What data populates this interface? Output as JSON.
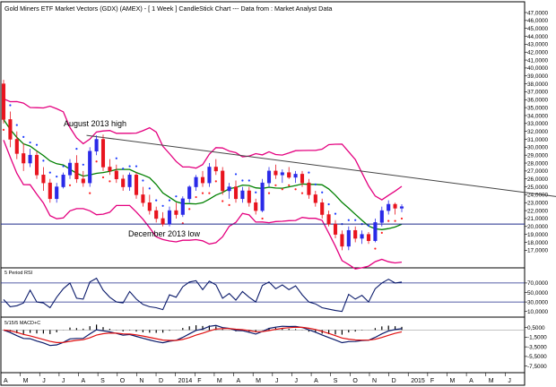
{
  "chart_data": {
    "type": "candlestick",
    "title": "Gold Miners ETF Market Vectors (GDX) (AMEX) - [ 1 Week ] CandleStick Chart --- Data from : Market Analyst Data",
    "annotations": [
      "August 2013 high",
      "December 2013 low"
    ],
    "price_ylim": [
      15.0,
      47.0
    ],
    "price_ticks": [
      "47,0000",
      "46,0000",
      "45,0000",
      "44,0000",
      "43,0000",
      "42,0000",
      "41,0000",
      "40,0000",
      "39,0000",
      "38,0000",
      "37,0000",
      "36,0000",
      "35,0000",
      "34,0000",
      "33,0000",
      "32,0000",
      "31,0000",
      "30,0000",
      "29,0000",
      "28,0000",
      "27,0000",
      "26,0000",
      "25,0000",
      "24,0000",
      "23,0000",
      "22,0000",
      "21,0000",
      "20,0000",
      "19,0000",
      "18,0000",
      "17,0000"
    ],
    "price_tick_values": [
      47,
      46,
      45,
      44,
      43,
      42,
      41,
      40,
      39,
      38,
      37,
      36,
      35,
      34,
      33,
      32,
      31,
      30,
      29,
      28,
      27,
      26,
      25,
      24,
      23,
      22,
      21,
      20,
      19,
      18,
      17
    ],
    "x_labels": [
      "A",
      "M",
      "J",
      "J",
      "A",
      "S",
      "O",
      "N",
      "D",
      "2014",
      "F",
      "M",
      "A",
      "M",
      "J",
      "J",
      "A",
      "S",
      "O",
      "N",
      "D",
      "2015",
      "F",
      "M",
      "A",
      "M",
      "J"
    ],
    "horizontal_line": 20.3,
    "trendline": [
      [
        12.5,
        31.5
      ],
      [
        84,
        23.7
      ]
    ],
    "candles": [
      [
        38.0,
        38.5,
        33.0,
        33.5
      ],
      [
        33.5,
        34.5,
        30.0,
        31.0
      ],
      [
        31.0,
        32.0,
        28.5,
        29.2
      ],
      [
        29.2,
        30.5,
        27.0,
        28.0
      ],
      [
        28.0,
        29.8,
        27.5,
        29.0
      ],
      [
        29.0,
        29.5,
        26.0,
        26.5
      ],
      [
        26.5,
        27.5,
        24.5,
        25.5
      ],
      [
        25.5,
        26.0,
        23.0,
        23.5
      ],
      [
        23.5,
        25.5,
        23.0,
        25.0
      ],
      [
        25.0,
        26.8,
        24.8,
        26.5
      ],
      [
        26.5,
        28.5,
        26.0,
        28.0
      ],
      [
        28.0,
        29.0,
        25.5,
        26.0
      ],
      [
        26.0,
        27.0,
        25.0,
        25.5
      ],
      [
        25.5,
        30.0,
        25.0,
        29.5
      ],
      [
        29.5,
        31.5,
        29.0,
        31.0
      ],
      [
        31.0,
        31.6,
        27.0,
        27.5
      ],
      [
        27.5,
        28.5,
        26.5,
        27.0
      ],
      [
        27.0,
        27.8,
        25.5,
        26.0
      ],
      [
        26.0,
        26.5,
        24.5,
        25.0
      ],
      [
        25.0,
        26.8,
        24.5,
        26.5
      ],
      [
        26.5,
        26.8,
        23.5,
        24.0
      ],
      [
        24.0,
        25.0,
        22.5,
        23.0
      ],
      [
        23.0,
        24.0,
        21.5,
        22.0
      ],
      [
        22.0,
        22.5,
        20.5,
        21.0
      ],
      [
        21.0,
        21.8,
        20.0,
        20.3
      ],
      [
        20.3,
        22.5,
        20.0,
        22.0
      ],
      [
        22.0,
        23.0,
        21.0,
        21.5
      ],
      [
        21.5,
        23.8,
        21.2,
        23.5
      ],
      [
        23.5,
        25.2,
        23.0,
        25.0
      ],
      [
        25.0,
        26.5,
        24.5,
        26.2
      ],
      [
        26.2,
        27.0,
        25.0,
        25.5
      ],
      [
        25.5,
        28.0,
        25.0,
        27.5
      ],
      [
        27.5,
        28.5,
        26.5,
        27.0
      ],
      [
        27.0,
        27.5,
        24.0,
        24.5
      ],
      [
        24.5,
        25.5,
        23.5,
        25.0
      ],
      [
        25.0,
        25.8,
        23.0,
        23.5
      ],
      [
        23.5,
        25.0,
        23.0,
        24.5
      ],
      [
        24.5,
        25.0,
        22.5,
        23.0
      ],
      [
        23.0,
        23.5,
        21.5,
        22.0
      ],
      [
        22.0,
        26.0,
        21.8,
        25.5
      ],
      [
        25.5,
        27.5,
        25.0,
        27.0
      ],
      [
        27.0,
        27.8,
        26.0,
        26.5
      ],
      [
        26.5,
        27.2,
        25.5,
        26.8
      ],
      [
        26.8,
        27.5,
        26.0,
        26.2
      ],
      [
        26.2,
        27.0,
        25.5,
        26.6
      ],
      [
        26.6,
        27.0,
        25.0,
        25.5
      ],
      [
        25.5,
        26.0,
        23.5,
        24.0
      ],
      [
        24.0,
        24.5,
        22.5,
        23.0
      ],
      [
        23.0,
        23.5,
        21.0,
        21.5
      ],
      [
        21.5,
        22.0,
        20.0,
        20.3
      ],
      [
        20.3,
        20.8,
        18.5,
        19.0
      ],
      [
        19.0,
        19.5,
        17.0,
        17.5
      ],
      [
        17.5,
        20.0,
        17.0,
        19.5
      ],
      [
        19.5,
        20.0,
        18.0,
        18.5
      ],
      [
        18.5,
        19.5,
        17.8,
        19.0
      ],
      [
        19.0,
        19.3,
        17.8,
        18.2
      ],
      [
        18.2,
        21.0,
        18.0,
        20.5
      ],
      [
        20.5,
        22.5,
        20.0,
        22.0
      ],
      [
        22.0,
        23.3,
        21.5,
        22.8
      ],
      [
        22.8,
        23.0,
        21.5,
        22.3
      ],
      [
        22.3,
        22.8,
        21.8,
        22.5
      ]
    ],
    "rsi": {
      "label": "5 Period RSI",
      "ylim": [
        0,
        100
      ],
      "ticks": [
        "70,0000",
        "50,0000",
        "30,0000",
        "10,0000"
      ],
      "tick_values": [
        70,
        50,
        30,
        10
      ],
      "levels": [
        70,
        30
      ],
      "values": [
        35,
        20,
        22,
        28,
        55,
        30,
        28,
        18,
        40,
        58,
        70,
        38,
        36,
        72,
        80,
        55,
        40,
        30,
        28,
        52,
        36,
        25,
        20,
        18,
        14,
        45,
        40,
        62,
        72,
        75,
        56,
        74,
        66,
        38,
        48,
        34,
        52,
        40,
        30,
        65,
        72,
        58,
        66,
        56,
        64,
        45,
        30,
        26,
        18,
        15,
        12,
        10,
        46,
        36,
        44,
        30,
        58,
        70,
        78,
        70,
        72
      ]
    },
    "macd": {
      "label": "5/15/5 MACD+C",
      "ticks": [
        "0,5000",
        "-1,5000",
        "-3,5000",
        "-5,5000",
        "-7,5000"
      ],
      "tick_values": [
        0.5,
        -1.5,
        -3.5,
        -5.5,
        -7.5
      ],
      "ylim": [
        -8.5,
        1.0
      ]
    }
  }
}
